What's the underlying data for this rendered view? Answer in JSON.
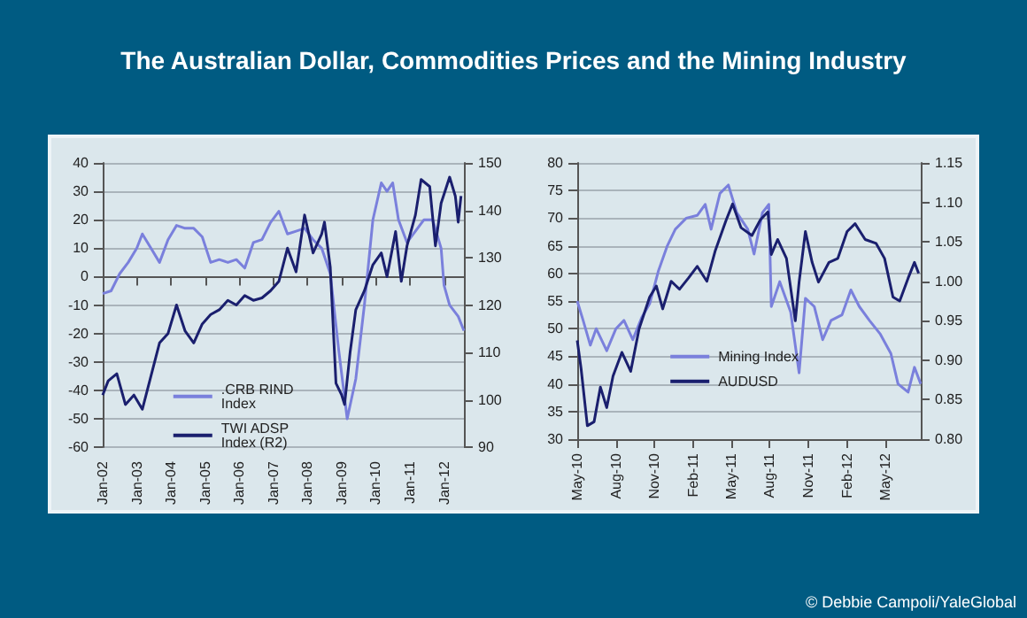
{
  "chart_data": [
    {
      "type": "line",
      "title": "The Australian Dollar, Commodities Prices and the Mining Industry",
      "xlim": [
        "2002-01",
        "2012-08"
      ],
      "xticks": [
        {
          "value": "2002-01",
          "label": "Jan-02"
        },
        {
          "value": "2003-01",
          "label": "Jan-03"
        },
        {
          "value": "2004-01",
          "label": "Jan-04"
        },
        {
          "value": "2005-01",
          "label": "Jan-05"
        },
        {
          "value": "2006-01",
          "label": "Jan-06"
        },
        {
          "value": "2007-01",
          "label": "Jan-07"
        },
        {
          "value": "2008-01",
          "label": "Jan-08"
        },
        {
          "value": "2009-01",
          "label": "Jan-09"
        },
        {
          "value": "2010-01",
          "label": "Jan-10"
        },
        {
          "value": "2011-01",
          "label": "Jan-11"
        },
        {
          "value": "2012-01",
          "label": "Jan-12"
        }
      ],
      "ylim": [
        -60,
        40
      ],
      "yticks": [
        -60,
        -50,
        -40,
        -30,
        -20,
        -10,
        0,
        10,
        20,
        30,
        40
      ],
      "y2lim": [
        90,
        150
      ],
      "y2ticks": [
        90,
        100,
        110,
        120,
        130,
        140,
        150
      ],
      "grid": "y",
      "legend": "bottom",
      "marker": "none",
      "line_style": "solid",
      "series": [
        {
          "name": ".CRB RIND Index",
          "color": "#7a80dc",
          "x": [
            "2002-01",
            "2002-04",
            "2002-07",
            "2002-10",
            "2003-01",
            "2003-03",
            "2003-06",
            "2003-09",
            "2003-12",
            "2004-03",
            "2004-06",
            "2004-09",
            "2004-12",
            "2005-03",
            "2005-06",
            "2005-09",
            "2005-12",
            "2006-03",
            "2006-06",
            "2006-09",
            "2006-12",
            "2007-03",
            "2007-06",
            "2007-09",
            "2007-12",
            "2008-03",
            "2008-06",
            "2008-09",
            "2008-12",
            "2009-03",
            "2009-06",
            "2009-09",
            "2009-12",
            "2010-03",
            "2010-05",
            "2010-07",
            "2010-09",
            "2010-12",
            "2011-03",
            "2011-06",
            "2011-09",
            "2011-12",
            "2012-01",
            "2012-03",
            "2012-06",
            "2012-08"
          ],
          "values": [
            -6,
            -5,
            1,
            5,
            10,
            15,
            10,
            5,
            13,
            18,
            17,
            17,
            14,
            5,
            6,
            5,
            6,
            3,
            12,
            13,
            19,
            23,
            15,
            16,
            17,
            13,
            10,
            1,
            -26,
            -50,
            -36,
            -10,
            20,
            33,
            30,
            33,
            20,
            12,
            16,
            20,
            20,
            10,
            -3,
            -10,
            -14,
            -19
          ]
        },
        {
          "name": "TWI ADSP Index (R2)",
          "color": "#1a1f6e",
          "axis": "y2",
          "x": [
            "2002-01",
            "2002-03",
            "2002-06",
            "2002-09",
            "2002-12",
            "2003-03",
            "2003-06",
            "2003-09",
            "2003-12",
            "2004-03",
            "2004-06",
            "2004-09",
            "2004-12",
            "2005-03",
            "2005-06",
            "2005-09",
            "2005-12",
            "2006-03",
            "2006-06",
            "2006-09",
            "2006-12",
            "2007-03",
            "2007-06",
            "2007-09",
            "2007-12",
            "2008-03",
            "2008-06",
            "2008-07",
            "2008-09",
            "2008-11",
            "2009-01",
            "2009-02",
            "2009-04",
            "2009-06",
            "2009-09",
            "2009-12",
            "2010-03",
            "2010-05",
            "2010-08",
            "2010-10",
            "2010-12",
            "2011-03",
            "2011-05",
            "2011-08",
            "2011-10",
            "2011-12",
            "2012-03",
            "2012-05",
            "2012-06",
            "2012-07"
          ],
          "values": [
            101,
            104,
            105.5,
            99,
            101,
            98,
            105,
            112,
            114,
            120,
            114.5,
            112,
            116,
            118,
            119,
            121,
            120,
            122,
            121,
            121.5,
            123,
            125,
            132,
            127,
            139,
            131,
            135,
            137.5,
            128,
            103.5,
            101,
            99,
            110,
            119,
            123,
            128.5,
            131,
            126,
            135.5,
            125,
            132.5,
            139,
            146.5,
            145,
            132.5,
            141.5,
            147,
            143,
            137.5,
            143
          ]
        }
      ]
    },
    {
      "type": "line",
      "annotations": [
        "© Debbie Campoli/YaleGlobal"
      ],
      "xlim": [
        "2010-05-01",
        "2012-07-25"
      ],
      "xticks": [
        {
          "value": "2010-05-01",
          "label": "May-10"
        },
        {
          "value": "2010-08-01",
          "label": "Aug-10"
        },
        {
          "value": "2010-11-01",
          "label": "Nov-10"
        },
        {
          "value": "2011-02-01",
          "label": "Feb-11"
        },
        {
          "value": "2011-05-01",
          "label": "May-11"
        },
        {
          "value": "2011-08-01",
          "label": "Aug-11"
        },
        {
          "value": "2011-11-01",
          "label": "Nov-11"
        },
        {
          "value": "2012-02-01",
          "label": "Feb-12"
        },
        {
          "value": "2012-05-01",
          "label": "May-12"
        }
      ],
      "ylim": [
        30,
        80
      ],
      "yticks": [
        30,
        35,
        40,
        45,
        50,
        55,
        60,
        65,
        70,
        75,
        80
      ],
      "y2lim": [
        0.8,
        1.15
      ],
      "y2ticks": [
        {
          "value": 0.8,
          "label": "0.80"
        },
        {
          "value": 0.85,
          "label": "0.85"
        },
        {
          "value": 0.9,
          "label": "0.90"
        },
        {
          "value": 0.95,
          "label": "0.95"
        },
        {
          "value": 1.0,
          "label": "1.00"
        },
        {
          "value": 1.05,
          "label": "1.05"
        },
        {
          "value": 1.1,
          "label": "1.10"
        },
        {
          "value": 1.15,
          "label": "1.15"
        }
      ],
      "grid": "y",
      "legend": "center",
      "marker": "none",
      "line_style": "solid",
      "series": [
        {
          "name": "Mining Index",
          "color": "#7a80dc",
          "x": [
            "2010-05-01",
            "2010-05-15",
            "2010-06-01",
            "2010-06-15",
            "2010-07-10",
            "2010-08-01",
            "2010-08-20",
            "2010-09-10",
            "2010-10-01",
            "2010-10-20",
            "2010-11-10",
            "2010-12-01",
            "2010-12-20",
            "2011-01-15",
            "2011-02-10",
            "2011-03-01",
            "2011-03-15",
            "2011-04-05",
            "2011-04-25",
            "2011-05-15",
            "2011-06-10",
            "2011-06-25",
            "2011-07-15",
            "2011-07-30",
            "2011-08-05",
            "2011-08-25",
            "2011-09-20",
            "2011-10-10",
            "2011-10-25",
            "2011-11-15",
            "2011-12-05",
            "2011-12-25",
            "2012-01-20",
            "2012-02-10",
            "2012-03-01",
            "2012-03-25",
            "2012-04-20",
            "2012-05-15",
            "2012-06-01",
            "2012-06-25",
            "2012-07-10",
            "2012-07-25"
          ],
          "values": [
            55,
            51.5,
            47,
            50,
            46,
            50,
            51.5,
            48,
            52,
            54.5,
            60.5,
            65,
            68,
            70,
            70.5,
            72.5,
            68,
            74.5,
            76,
            71,
            68,
            63.5,
            71,
            72.5,
            54,
            58.5,
            53,
            42,
            55.5,
            54,
            48,
            51.5,
            52.5,
            57,
            54,
            51.5,
            49,
            45.5,
            40,
            38.5,
            43,
            40
          ]
        },
        {
          "name": "AUDUSD",
          "color": "#1a1f6e",
          "axis": "y2",
          "x": [
            "2010-05-01",
            "2010-05-10",
            "2010-05-25",
            "2010-06-10",
            "2010-06-25",
            "2010-07-10",
            "2010-07-25",
            "2010-08-15",
            "2010-09-05",
            "2010-09-25",
            "2010-10-20",
            "2010-11-05",
            "2010-11-20",
            "2010-12-10",
            "2010-12-30",
            "2011-01-20",
            "2011-02-10",
            "2011-03-05",
            "2011-03-25",
            "2011-04-20",
            "2011-05-05",
            "2011-05-25",
            "2011-06-20",
            "2011-07-10",
            "2011-07-28",
            "2011-08-05",
            "2011-08-20",
            "2011-09-10",
            "2011-10-01",
            "2011-10-10",
            "2011-10-25",
            "2011-11-10",
            "2011-11-25",
            "2011-12-20",
            "2012-01-10",
            "2012-02-01",
            "2012-02-20",
            "2012-03-15",
            "2012-04-10",
            "2012-04-30",
            "2012-05-20",
            "2012-06-05",
            "2012-06-25",
            "2012-07-10",
            "2012-07-20"
          ],
          "values": [
            0.925,
            0.89,
            0.817,
            0.822,
            0.866,
            0.84,
            0.88,
            0.91,
            0.886,
            0.94,
            0.98,
            0.994,
            0.965,
            1.0,
            0.99,
            1.004,
            1.019,
            1.0,
            1.039,
            1.078,
            1.098,
            1.068,
            1.058,
            1.078,
            1.088,
            1.034,
            1.053,
            1.029,
            0.95,
            0.999,
            1.063,
            1.024,
            0.999,
            1.024,
            1.029,
            1.063,
            1.073,
            1.053,
            1.048,
            1.029,
            0.98,
            0.975,
            1.004,
            1.024,
            1.01
          ]
        }
      ]
    }
  ]
}
